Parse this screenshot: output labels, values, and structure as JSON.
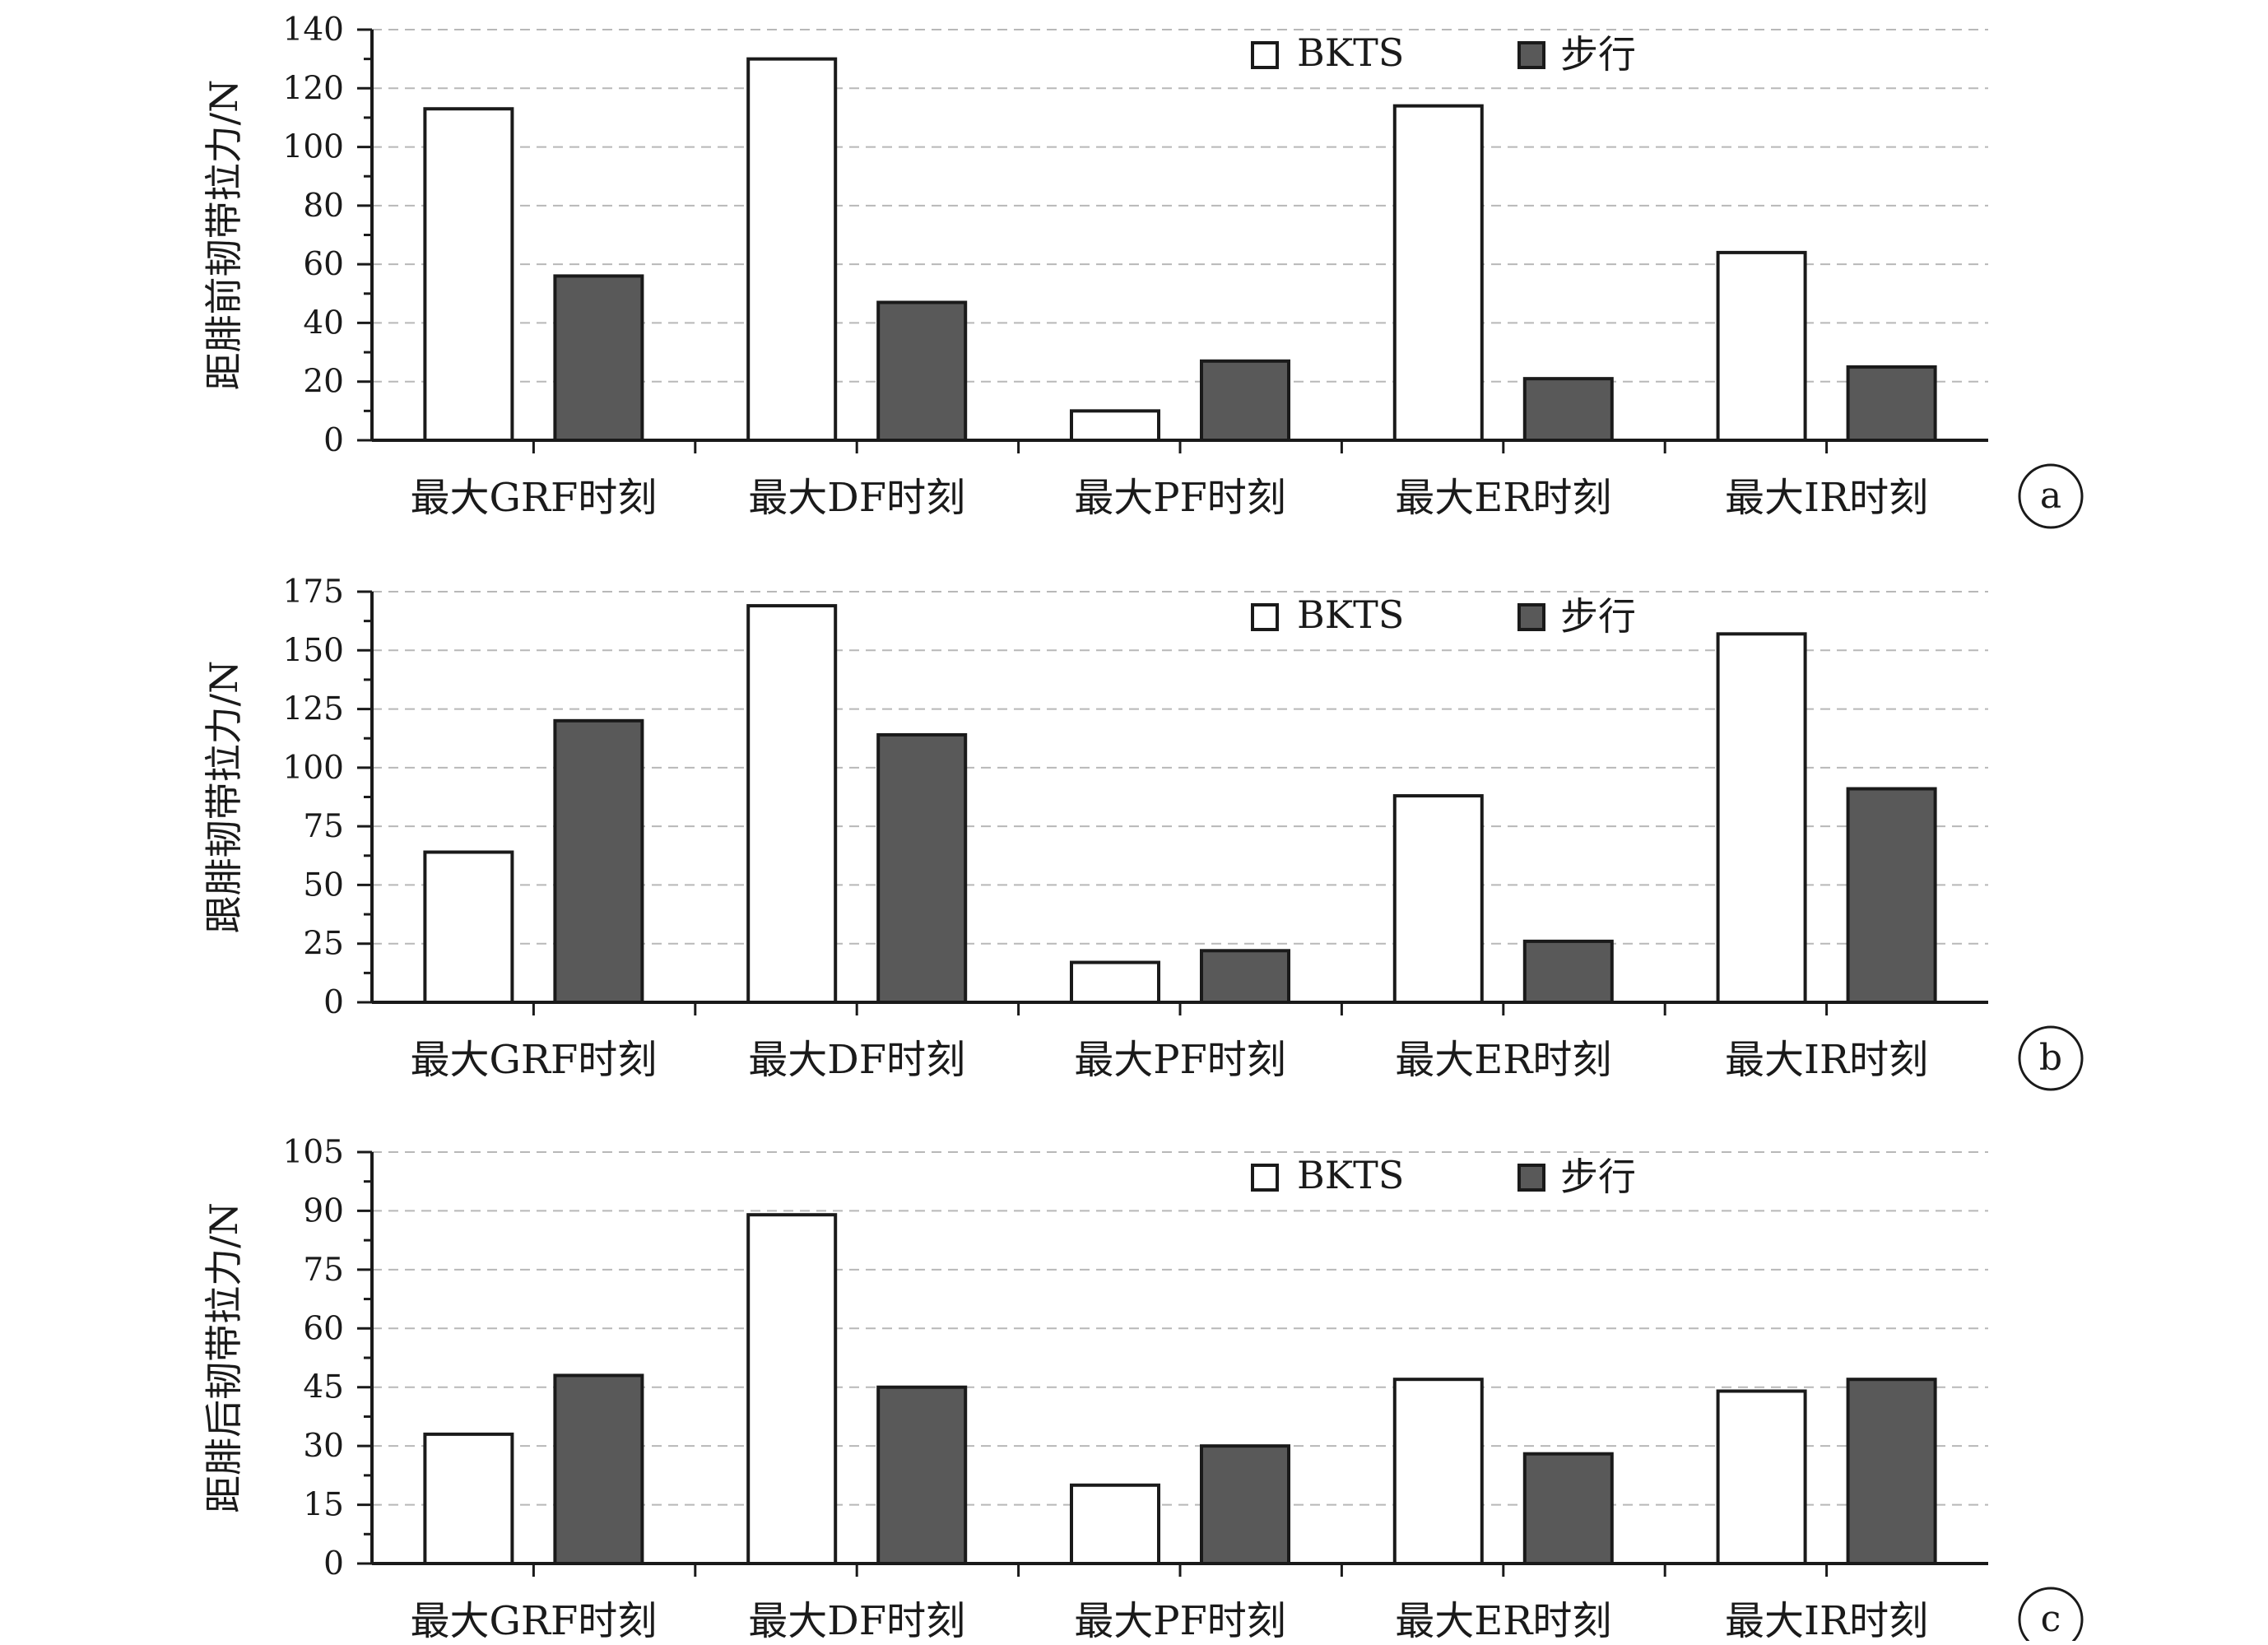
{
  "colors": {
    "bkts_fill": "#ffffff",
    "walk_fill": "#595959",
    "axis": "#1a1a1a",
    "grid": "#b8b8b8"
  },
  "chart_data": [
    {
      "type": "bar",
      "panel": "a",
      "ylabel": "距腓前韧带拉力/N",
      "categories": [
        "最大GRF时刻",
        "最大DF时刻",
        "最大PF时刻",
        "最大ER时刻",
        "最大IR时刻"
      ],
      "series": [
        {
          "name": "BKTS",
          "values": [
            113,
            130,
            10,
            114,
            64
          ]
        },
        {
          "name": "步行",
          "values": [
            56,
            47,
            27,
            21,
            25
          ]
        }
      ],
      "ylim": [
        0,
        140
      ],
      "yticks": [
        0,
        20,
        40,
        60,
        80,
        100,
        120,
        140
      ],
      "grid": true,
      "legend": "top"
    },
    {
      "type": "bar",
      "panel": "b",
      "ylabel": "跟腓韧带拉力/N",
      "categories": [
        "最大GRF时刻",
        "最大DF时刻",
        "最大PF时刻",
        "最大ER时刻",
        "最大IR时刻"
      ],
      "series": [
        {
          "name": "BKTS",
          "values": [
            64,
            169,
            17,
            88,
            157
          ]
        },
        {
          "name": "步行",
          "values": [
            120,
            114,
            22,
            26,
            91
          ]
        }
      ],
      "ylim": [
        0,
        175
      ],
      "yticks": [
        0,
        25,
        50,
        75,
        100,
        125,
        150,
        175
      ],
      "grid": true,
      "legend": "top"
    },
    {
      "type": "bar",
      "panel": "c",
      "ylabel": "距腓后韧带拉力/N",
      "categories": [
        "最大GRF时刻",
        "最大DF时刻",
        "最大PF时刻",
        "最大ER时刻",
        "最大IR时刻"
      ],
      "series": [
        {
          "name": "BKTS",
          "values": [
            33,
            89,
            20,
            47,
            44
          ]
        },
        {
          "name": "步行",
          "values": [
            48,
            45,
            30,
            28,
            47
          ]
        }
      ],
      "ylim": [
        0,
        105
      ],
      "yticks": [
        0,
        15,
        30,
        45,
        60,
        75,
        90,
        105
      ],
      "grid": true,
      "legend": "top"
    }
  ]
}
